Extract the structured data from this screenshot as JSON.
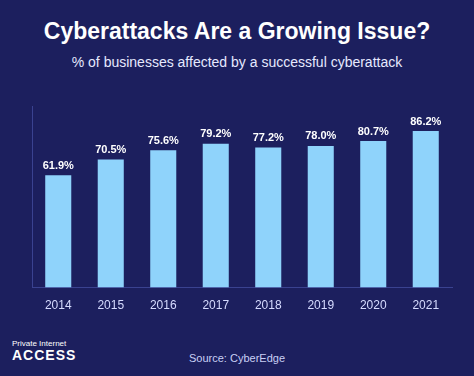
{
  "chart_data": {
    "type": "bar",
    "title": "Cyberattacks Are a Growing Issue?",
    "subtitle": "% of businesses affected by a successful cyberattack",
    "categories": [
      "2014",
      "2015",
      "2016",
      "2017",
      "2018",
      "2019",
      "2020",
      "2021"
    ],
    "values": [
      61.9,
      70.5,
      75.6,
      79.2,
      77.2,
      78.0,
      80.7,
      86.2
    ],
    "value_labels": [
      "61.9%",
      "70.5%",
      "75.6%",
      "79.2%",
      "77.2%",
      "78.0%",
      "80.7%",
      "86.2%"
    ],
    "color": "#8fd3fb",
    "ylim": [
      0,
      100
    ],
    "grid": false,
    "data_labels": true,
    "tick_labels": "x",
    "source": "Source: CyberEdge",
    "logo": [
      "Private Internet",
      "ACCESS"
    ]
  }
}
